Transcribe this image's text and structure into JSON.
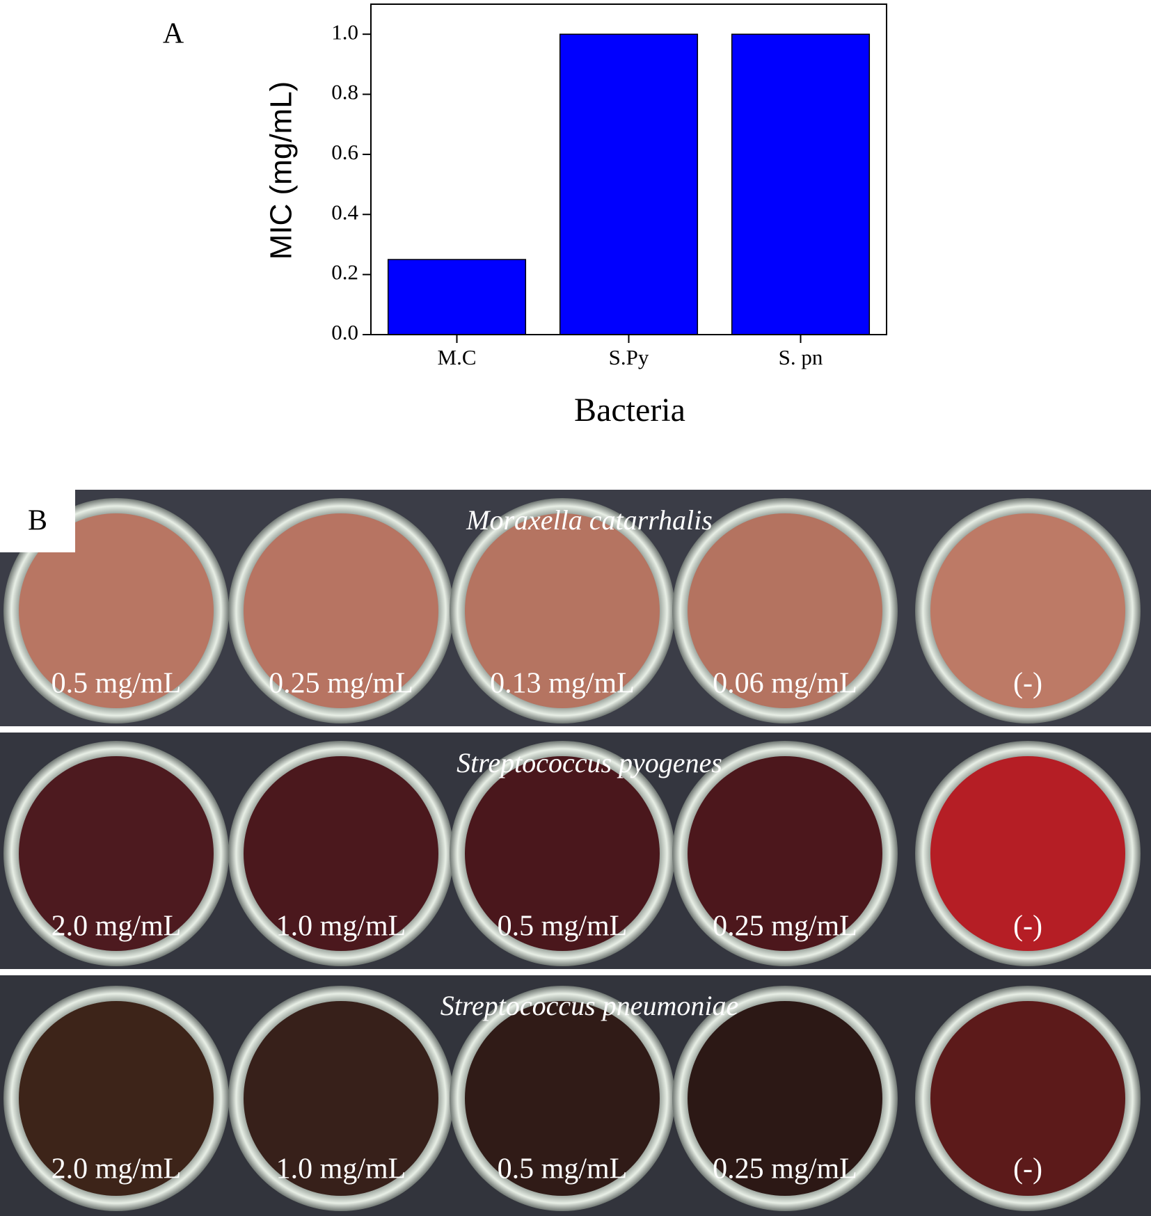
{
  "chart_data": {
    "type": "bar",
    "panel_label": "A",
    "categories": [
      "M.C",
      "S.Py",
      "S. pn"
    ],
    "values": [
      0.25,
      1.0,
      1.0
    ],
    "color": "#0000ff",
    "ylim": [
      0,
      1.1
    ],
    "yticks": [
      {
        "value": 0,
        "label": "0.0"
      },
      0.2,
      0.4,
      0.6,
      0.8,
      {
        "value": 1.0,
        "label": "1.0"
      }
    ],
    "y_label": "MIC (mg/mL)",
    "x_label": "Bacteria"
  },
  "photo_panel": {
    "label": "B",
    "rows": [
      {
        "title": "Moraxella catarrhalis",
        "wells": [
          "0.5 mg/mL",
          "0.25 mg/mL",
          "0.13 mg/mL",
          "0.06 mg/mL",
          "(-)"
        ]
      },
      {
        "title": "Streptococcus pyogenes",
        "wells": [
          "2.0 mg/mL",
          "1.0 mg/mL",
          "0.5 mg/mL",
          "0.25 mg/mL",
          "(-)"
        ]
      },
      {
        "title": "Streptococcus pneumoniae",
        "wells": [
          "2.0 mg/mL",
          "1.0 mg/mL",
          "0.5 mg/mL",
          "0.25 mg/mL",
          "(-)"
        ]
      }
    ]
  }
}
